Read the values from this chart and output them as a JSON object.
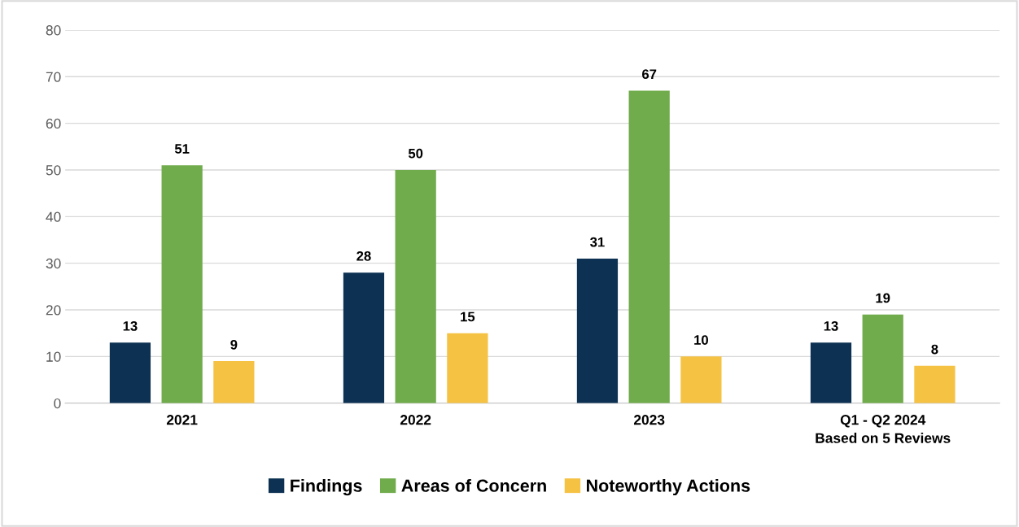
{
  "chart_data": {
    "type": "bar",
    "categories": [
      "2021",
      "2022",
      "2023",
      "Q1 - Q2 2024\nBased on 5 Reviews"
    ],
    "series": [
      {
        "name": "Findings",
        "color": "#0d3152",
        "values": [
          13,
          28,
          31,
          13
        ]
      },
      {
        "name": "Areas of Concern",
        "color": "#70ab4c",
        "values": [
          51,
          50,
          67,
          19
        ]
      },
      {
        "name": "Noteworthy Actions",
        "color": "#f5c244",
        "values": [
          9,
          15,
          10,
          8
        ]
      }
    ],
    "ylim": [
      0,
      80
    ],
    "yticks": [
      0,
      10,
      20,
      30,
      40,
      50,
      60,
      70,
      80
    ],
    "grid": "y",
    "legend": "bottom",
    "data_labels": true
  }
}
